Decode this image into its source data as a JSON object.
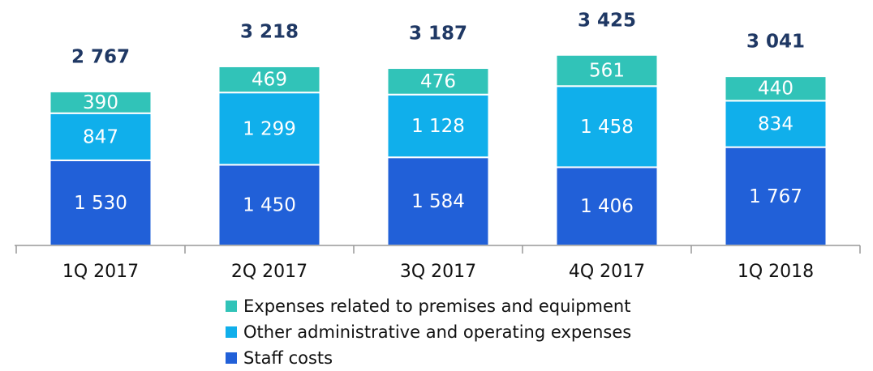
{
  "chart_data": {
    "type": "stacked-bar",
    "categories": [
      "1Q 2017",
      "2Q 2017",
      "3Q 2017",
      "4Q 2017",
      "1Q 2018"
    ],
    "series": [
      {
        "name": "Staff costs",
        "color": "#2160d8",
        "values": [
          1530,
          1450,
          1584,
          1406,
          1767
        ],
        "value_labels": [
          "1 530",
          "1 450",
          "1 584",
          "1 406",
          "1 767"
        ]
      },
      {
        "name": "Other administrative and operating expenses",
        "color": "#10afeb",
        "values": [
          847,
          1299,
          1128,
          1458,
          834
        ],
        "value_labels": [
          "847",
          "1 299",
          "1 128",
          "1 458",
          "834"
        ]
      },
      {
        "name": "Expenses related to premises and equipment",
        "color": "#31c3b8",
        "values": [
          390,
          469,
          476,
          561,
          440
        ],
        "value_labels": [
          "390",
          "469",
          "476",
          "561",
          "440"
        ]
      }
    ],
    "totals": [
      2767,
      3218,
      3187,
      3425,
      3041
    ],
    "total_labels": [
      "2 767",
      "3 218",
      "3 187",
      "3 425",
      "3 041"
    ],
    "ylim": [
      0,
      3800
    ]
  }
}
